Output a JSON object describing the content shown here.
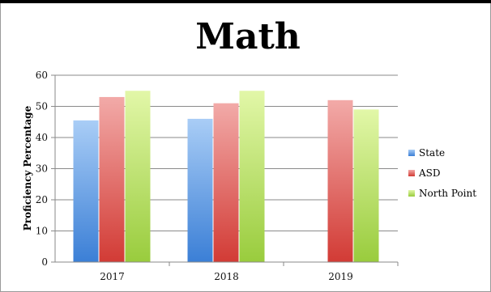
{
  "chart_data": {
    "type": "bar",
    "title": "Math",
    "ylabel": "Proficiency Percentage",
    "xlabel": "",
    "categories": [
      "2017",
      "2018",
      "2019"
    ],
    "ylim": [
      0,
      60
    ],
    "yticks": [
      0,
      10,
      20,
      30,
      40,
      50,
      60
    ],
    "grid": true,
    "legend_position": "right",
    "series": [
      {
        "name": "State",
        "values": [
          45.5,
          46,
          null
        ],
        "color": "#7eb3ea"
      },
      {
        "name": "ASD",
        "values": [
          53,
          51,
          52
        ],
        "color": "#ec8c8a"
      },
      {
        "name": "North Point",
        "values": [
          55,
          55,
          49
        ],
        "color": "#c9ea7e"
      }
    ]
  }
}
